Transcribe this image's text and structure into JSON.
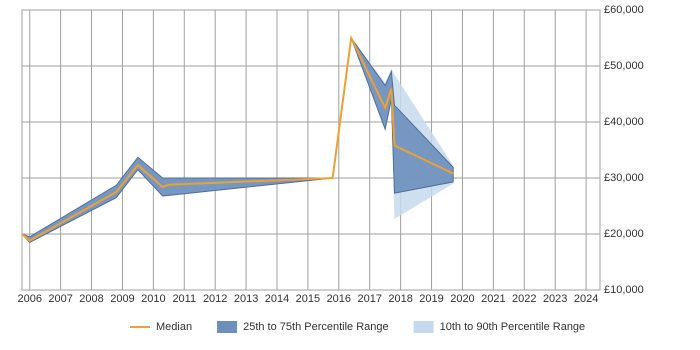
{
  "chart_data": {
    "type": "band-line",
    "x": [
      2005.75,
      2006.0,
      2008.8,
      2009.5,
      2010.3,
      2010.5,
      2015.8,
      2016.4,
      2017.5,
      2017.7,
      2017.8,
      2019.7
    ],
    "series": [
      {
        "name": "Median",
        "color": "#f0a030",
        "values": [
          20000,
          18800,
          27500,
          32300,
          28400,
          28800,
          30000,
          55000,
          42500,
          46000,
          35800,
          30800
        ]
      },
      {
        "name": "25th to 75th Percentile Range",
        "color": "#6d8fbb",
        "lower": [
          20000,
          18500,
          26500,
          31500,
          26800,
          26900,
          30000,
          55000,
          38700,
          44000,
          27300,
          29300
        ],
        "upper": [
          20000,
          19500,
          28700,
          33700,
          30000,
          30000,
          30000,
          55000,
          46500,
          49000,
          43000,
          31900
        ]
      },
      {
        "name": "10th to 90th Percentile Range",
        "color": "#c6d9ec",
        "lower": [
          20000,
          18500,
          26500,
          31500,
          26800,
          26900,
          30000,
          55000,
          38700,
          44000,
          22700,
          29000
        ],
        "upper": [
          20000,
          19500,
          28700,
          33700,
          30000,
          30000,
          30000,
          55000,
          47000,
          49500,
          48500,
          32200
        ]
      }
    ],
    "xlim": [
      2005.75,
      2024.45
    ],
    "xticks": [
      2006,
      2007,
      2008,
      2009,
      2010,
      2011,
      2012,
      2013,
      2014,
      2015,
      2016,
      2017,
      2018,
      2019,
      2020,
      2021,
      2022,
      2023,
      2024
    ],
    "ylim": [
      10000,
      60000
    ],
    "yticks": [
      {
        "value": 10000,
        "label": "£10,000"
      },
      {
        "value": 20000,
        "label": "£20,000"
      },
      {
        "value": 30000,
        "label": "£30,000"
      },
      {
        "value": 40000,
        "label": "£40,000"
      },
      {
        "value": 50000,
        "label": "£50,000"
      },
      {
        "value": 60000,
        "label": "£60,000"
      }
    ],
    "grid": true
  }
}
